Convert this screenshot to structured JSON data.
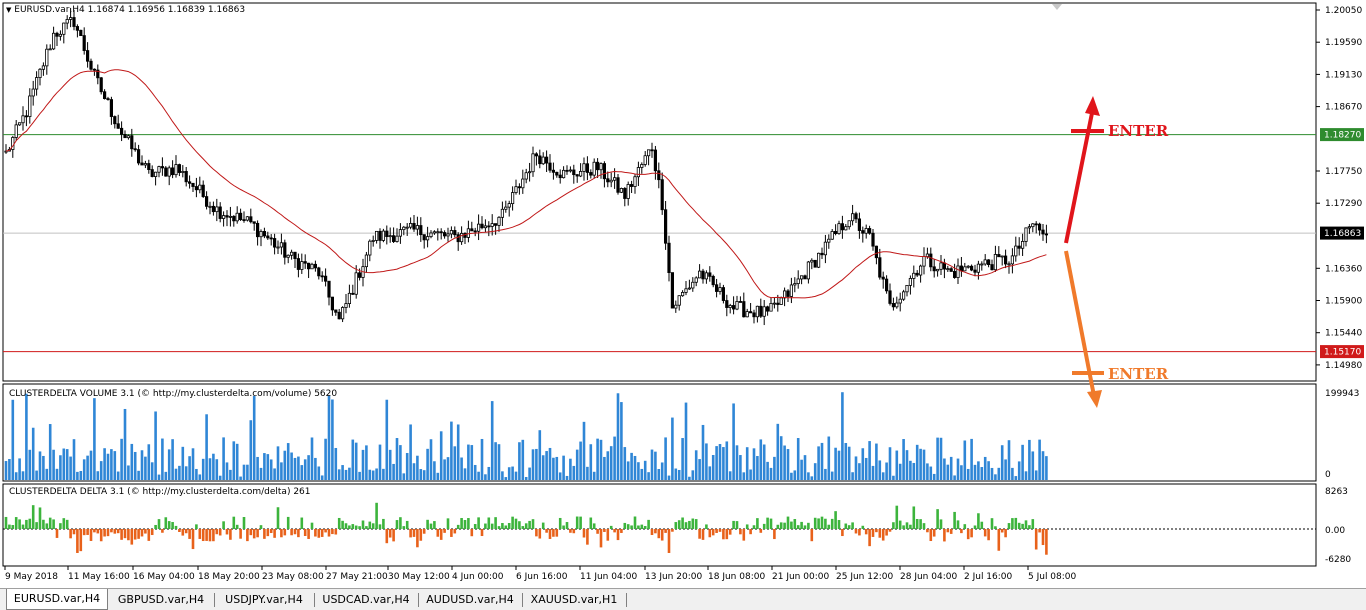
{
  "main_chart": {
    "symbol_info": "EURUSD.var,H4  1.16874 1.16956 1.16839 1.16863",
    "price_labels": [
      "1.20050",
      "1.19590",
      "1.19130",
      "1.18670",
      "1.17750",
      "1.17290",
      "1.16360",
      "1.15900",
      "1.15440",
      "1.14980"
    ],
    "resistance_label": "1.18270",
    "current_label": "1.16863",
    "support_label": "1.15170",
    "enter_up_label": "ENTER",
    "enter_down_label": "ENTER",
    "colors": {
      "bull": "#000000",
      "bear": "#000000",
      "ma": "#c01818",
      "resistance": "#2e8b2e",
      "support": "#d01a1a",
      "up_arrow": "#e0151b",
      "down_arrow": "#f07a2b"
    }
  },
  "volume_indicator": {
    "title": "CLUSTERDELTA VOLUME 3.1 (© http://my.clusterdelta.com/volume) 5620",
    "max_label": "199943",
    "min_label": "0",
    "bar_color": "#2f86d6"
  },
  "delta_indicator": {
    "title": "CLUSTERDELTA DELTA 3.1 (© http://my.clusterdelta.com/delta) 261",
    "max_label": "8263",
    "zero_label": "0.00",
    "min_label": "-6280",
    "pos_color": "#3cb43c",
    "neg_color": "#e8611a"
  },
  "time_axis": [
    "9 May 2018",
    "11 May 16:00",
    "16 May 04:00",
    "18 May 20:00",
    "23 May 08:00",
    "27 May 21:00",
    "30 May 12:00",
    "4 Jun 00:00",
    "6 Jun 16:00",
    "11 Jun 04:00",
    "13 Jun 20:00",
    "18 Jun 08:00",
    "21 Jun 00:00",
    "25 Jun 12:00",
    "28 Jun 04:00",
    "2 Jul 16:00",
    "5 Jul 08:00"
  ],
  "tabs": [
    "EURUSD.var,H4",
    "GBPUSD.var,H4",
    "USDJPY.var,H4",
    "USDCAD.var,H4",
    "AUDUSD.var,H4",
    "XAUUSD.var,H1"
  ],
  "chart_data": {
    "type": "candlestick",
    "title": "EURUSD.var,H4",
    "ylim": [
      1.1475,
      1.2015
    ],
    "resistance": 1.1827,
    "support": 1.1517,
    "current": 1.16863,
    "anchors": [
      [
        0,
        1.18
      ],
      [
        6,
        1.186
      ],
      [
        14,
        1.197
      ],
      [
        20,
        1.199
      ],
      [
        26,
        1.191
      ],
      [
        34,
        1.183
      ],
      [
        42,
        1.177
      ],
      [
        50,
        1.178
      ],
      [
        62,
        1.172
      ],
      [
        72,
        1.17
      ],
      [
        84,
        1.165
      ],
      [
        92,
        1.163
      ],
      [
        98,
        1.156
      ],
      [
        108,
        1.168
      ],
      [
        120,
        1.169
      ],
      [
        132,
        1.168
      ],
      [
        146,
        1.171
      ],
      [
        156,
        1.18
      ],
      [
        164,
        1.177
      ],
      [
        174,
        1.178
      ],
      [
        182,
        1.174
      ],
      [
        190,
        1.181
      ],
      [
        193,
        1.173
      ],
      [
        196,
        1.158
      ],
      [
        204,
        1.163
      ],
      [
        214,
        1.158
      ],
      [
        224,
        1.157
      ],
      [
        230,
        1.16
      ],
      [
        240,
        1.166
      ],
      [
        248,
        1.171
      ],
      [
        254,
        1.168
      ],
      [
        260,
        1.158
      ],
      [
        270,
        1.165
      ],
      [
        278,
        1.163
      ],
      [
        286,
        1.164
      ],
      [
        296,
        1.165
      ],
      [
        302,
        1.17
      ],
      [
        306,
        1.168
      ]
    ],
    "volume_ylim": [
      0,
      199943
    ],
    "delta_ylim": [
      -6280,
      8263
    ]
  }
}
